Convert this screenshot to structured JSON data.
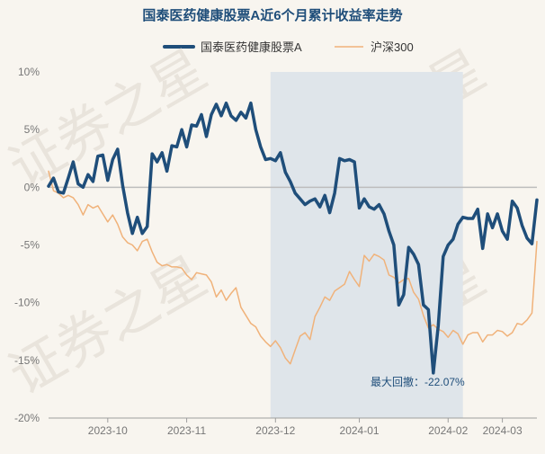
{
  "chart_data": {
    "type": "line",
    "title": "国泰医药健康股票A近6个月累计收益率走势",
    "xlabel": "",
    "ylabel": "",
    "ylim": [
      -20,
      10
    ],
    "yticks": [
      10,
      5,
      0,
      -5,
      -10,
      -15,
      -20
    ],
    "ytick_labels": [
      "10%",
      "5%",
      "0%",
      "-5%",
      "-10%",
      "-15%",
      "-20%"
    ],
    "xtick_labels": [
      "2023-10",
      "2023-11",
      "2023-12",
      "2024-01",
      "2024-02",
      "2024-03"
    ],
    "xtick_positions": [
      12,
      28,
      46,
      63,
      81,
      92
    ],
    "x_count": 100,
    "grid": false,
    "legend": "top-center",
    "zero_line": true,
    "watermark": "证券之星",
    "series": [
      {
        "name": "国泰医药健康股票A",
        "color": "#1f4e7a",
        "x": [
          0,
          1,
          2,
          3,
          4,
          5,
          6,
          7,
          8,
          9,
          10,
          11,
          12,
          13,
          14,
          15,
          16,
          17,
          18,
          19,
          20,
          21,
          22,
          23,
          24,
          25,
          26,
          27,
          28,
          29,
          30,
          31,
          32,
          33,
          34,
          35,
          36,
          37,
          38,
          39,
          40,
          41,
          42,
          43,
          44,
          45,
          46,
          47,
          48,
          49,
          50,
          51,
          52,
          53,
          54,
          55,
          56,
          57,
          58,
          59,
          60,
          61,
          62,
          63,
          64,
          65,
          66,
          67,
          68,
          69,
          70,
          71,
          72,
          73,
          74,
          75,
          76,
          77,
          78,
          79,
          80,
          81,
          82,
          83,
          84,
          85,
          86,
          87,
          88,
          89,
          90,
          91,
          92,
          93,
          94,
          95,
          96,
          97,
          98,
          99
        ],
        "values": [
          0.1,
          0.8,
          -0.4,
          -0.5,
          0.8,
          2.2,
          0.3,
          0.0,
          1.1,
          0.5,
          2.7,
          2.8,
          0.6,
          2.4,
          3.3,
          0.2,
          -2.2,
          -4.0,
          -2.6,
          -4.0,
          -3.4,
          2.9,
          2.2,
          3.0,
          1.4,
          3.6,
          3.5,
          5.0,
          3.5,
          5.4,
          5.3,
          6.3,
          4.4,
          6.3,
          7.2,
          6.2,
          7.3,
          6.2,
          5.8,
          6.5,
          6.0,
          7.3,
          5.0,
          3.5,
          2.4,
          2.5,
          2.3,
          3.0,
          1.3,
          0.5,
          -0.5,
          -1.0,
          -1.5,
          -1.2,
          -1.0,
          -1.7,
          -0.7,
          -2.2,
          -0.5,
          2.5,
          2.3,
          2.4,
          2.2,
          -1.8,
          -1.0,
          -1.7,
          -1.9,
          -1.5,
          -2.3,
          -3.8,
          -5.0,
          -10.2,
          -9.3,
          -5.2,
          -5.8,
          -6.7,
          -10.2,
          -10.6,
          -16.1,
          -12.0,
          -6.0,
          -5.0,
          -4.5,
          -3.2,
          -2.6,
          -2.7,
          -2.7,
          -1.9,
          -5.3,
          -2.3,
          -3.5,
          -2.3,
          -3.8,
          -4.5,
          -1.2,
          -1.8,
          -3.3,
          -4.4,
          -4.9,
          -1.1
        ]
      },
      {
        "name": "沪深300",
        "color": "#f0b27a",
        "x": [
          0,
          1,
          2,
          3,
          4,
          5,
          6,
          7,
          8,
          9,
          10,
          11,
          12,
          13,
          14,
          15,
          16,
          17,
          18,
          19,
          20,
          21,
          22,
          23,
          24,
          25,
          26,
          27,
          28,
          29,
          30,
          31,
          32,
          33,
          34,
          35,
          36,
          37,
          38,
          39,
          40,
          41,
          42,
          43,
          44,
          45,
          46,
          47,
          48,
          49,
          50,
          51,
          52,
          53,
          54,
          55,
          56,
          57,
          58,
          59,
          60,
          61,
          62,
          63,
          64,
          65,
          66,
          67,
          68,
          69,
          70,
          71,
          72,
          73,
          74,
          75,
          76,
          77,
          78,
          79,
          80,
          81,
          82,
          83,
          84,
          85,
          86,
          87,
          88,
          89,
          90,
          91,
          92,
          93,
          94,
          95,
          96,
          97,
          98,
          99
        ],
        "values": [
          1.4,
          -0.3,
          -0.5,
          -0.9,
          -0.7,
          -0.9,
          -1.5,
          -2.4,
          -1.5,
          -1.8,
          -1.6,
          -2.3,
          -3.0,
          -2.4,
          -3.2,
          -4.3,
          -4.8,
          -5.0,
          -5.5,
          -4.7,
          -4.5,
          -5.6,
          -6.5,
          -6.8,
          -6.7,
          -6.9,
          -6.9,
          -7.0,
          -7.6,
          -8.0,
          -7.4,
          -7.5,
          -7.6,
          -8.2,
          -9.5,
          -8.9,
          -9.8,
          -9.2,
          -8.7,
          -10.4,
          -11.1,
          -11.8,
          -12.1,
          -12.9,
          -13.4,
          -13.8,
          -13.3,
          -13.9,
          -14.8,
          -15.3,
          -14.1,
          -12.9,
          -12.6,
          -13.2,
          -11.2,
          -10.4,
          -9.5,
          -9.8,
          -9.0,
          -8.7,
          -8.4,
          -7.3,
          -8.0,
          -8.6,
          -5.9,
          -6.4,
          -5.8,
          -6.0,
          -6.3,
          -7.6,
          -7.8,
          -8.3,
          -8.0,
          -7.9,
          -9.1,
          -9.7,
          -11.1,
          -12.2,
          -11.9,
          -12.3,
          -12.5,
          -13.0,
          -12.4,
          -12.7,
          -13.6,
          -12.8,
          -12.6,
          -12.6,
          -13.4,
          -12.8,
          -12.8,
          -12.4,
          -12.5,
          -12.9,
          -12.6,
          -11.8,
          -11.9,
          -11.5,
          -10.9,
          -4.7
        ]
      }
    ],
    "drawdown": {
      "start_x": 45,
      "end_x": 84,
      "label": "最大回撤：-22.07%"
    }
  }
}
